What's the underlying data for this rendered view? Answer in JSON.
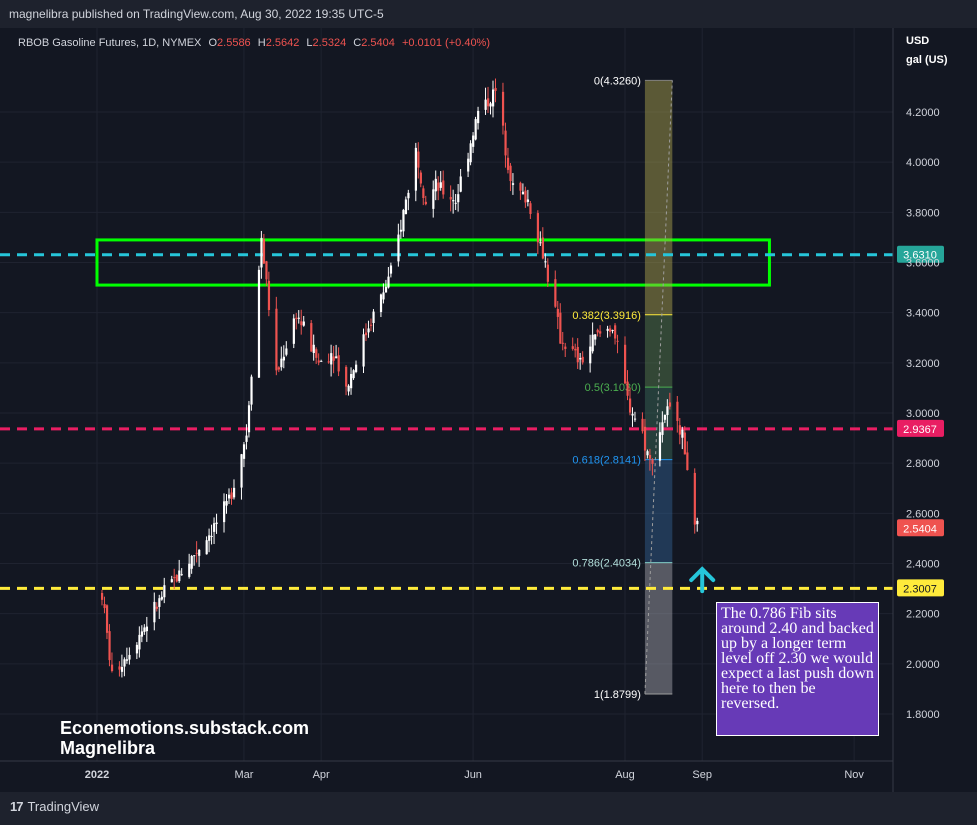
{
  "header": {
    "publish_text": "magnelibra published on TradingView.com, Aug 30, 2022 19:35 UTC-5"
  },
  "legend": {
    "symbol": "RBOB Gasoline Futures, 1D, NYMEX",
    "o_label": "O",
    "o_value": "2.5586",
    "h_label": "H",
    "h_value": "2.5642",
    "l_label": "L",
    "l_value": "2.5324",
    "c_label": "C",
    "c_value": "2.5404",
    "change": "+0.0101 (+0.40%)"
  },
  "axis": {
    "unit_line1": "USD",
    "unit_line2": "gal (US)"
  },
  "footer": {
    "brand": "TradingView"
  },
  "watermark": {
    "line1": "Econemotions.substack.com",
    "line2": "Magnelibra"
  },
  "annotation": {
    "text": "The 0.786 Fib sits around 2.40 and backed up by a longer term level off 2.30 we would expect a last push down here to then be reversed."
  },
  "colors": {
    "up": "#ffffff",
    "down": "#ef5350",
    "bg": "#131722",
    "zone": "#00ff00",
    "cyan_line": "#26c6da",
    "pink_line": "#e91e63",
    "yellow_line": "#ffeb3b",
    "arrow": "#26c6da",
    "note_bg": "#673ab7"
  },
  "chart_data": {
    "type": "candlestick",
    "ylim": [
      1.72,
      4.42
    ],
    "y_ticks": [
      "4.2000",
      "4.0000",
      "3.8000",
      "3.6000",
      "3.4000",
      "3.2000",
      "3.0000",
      "2.8000",
      "2.6000",
      "2.4000",
      "2.2000",
      "2.0000",
      "1.8000"
    ],
    "x_ticks": [
      "2022",
      "Mar",
      "Apr",
      "Jun",
      "Aug",
      "Sep",
      "Nov"
    ],
    "anchors": [
      {
        "date": "2022-01-03",
        "price": 2.28
      },
      {
        "date": "2022-01-07",
        "price": 1.95
      },
      {
        "date": "2022-01-20",
        "price": 2.15
      },
      {
        "date": "2022-01-28",
        "price": 2.28
      },
      {
        "date": "2022-02-10",
        "price": 2.45
      },
      {
        "date": "2022-02-22",
        "price": 2.62
      },
      {
        "date": "2022-03-02",
        "price": 2.92
      },
      {
        "date": "2022-03-08",
        "price": 3.7
      },
      {
        "date": "2022-03-14",
        "price": 3.15
      },
      {
        "date": "2022-03-22",
        "price": 3.4
      },
      {
        "date": "2022-03-31",
        "price": 3.2
      },
      {
        "date": "2022-04-06",
        "price": 3.25
      },
      {
        "date": "2022-04-11",
        "price": 3.1
      },
      {
        "date": "2022-04-20",
        "price": 3.35
      },
      {
        "date": "2022-04-29",
        "price": 3.55
      },
      {
        "date": "2022-05-04",
        "price": 3.8
      },
      {
        "date": "2022-05-09",
        "price": 4.05
      },
      {
        "date": "2022-05-13",
        "price": 3.85
      },
      {
        "date": "2022-05-17",
        "price": 3.9
      },
      {
        "date": "2022-05-25",
        "price": 3.85
      },
      {
        "date": "2022-06-03",
        "price": 4.2
      },
      {
        "date": "2022-06-10",
        "price": 4.28
      },
      {
        "date": "2022-06-17",
        "price": 3.9
      },
      {
        "date": "2022-06-23",
        "price": 3.85
      },
      {
        "date": "2022-06-30",
        "price": 3.6
      },
      {
        "date": "2022-07-06",
        "price": 3.3
      },
      {
        "date": "2022-07-14",
        "price": 3.2
      },
      {
        "date": "2022-07-20",
        "price": 3.3
      },
      {
        "date": "2022-07-27",
        "price": 3.35
      },
      {
        "date": "2022-08-02",
        "price": 3.05
      },
      {
        "date": "2022-08-08",
        "price": 2.92
      },
      {
        "date": "2022-08-11",
        "price": 2.8
      },
      {
        "date": "2022-08-17",
        "price": 3.0
      },
      {
        "date": "2022-08-22",
        "price": 3.0
      },
      {
        "date": "2022-08-26",
        "price": 2.8
      },
      {
        "date": "2022-08-29",
        "price": 2.52
      },
      {
        "date": "2022-08-30",
        "price": 2.5404
      }
    ],
    "horizontal_lines": [
      {
        "price": 3.631,
        "label": "3.6310"
      },
      {
        "price": 2.9367,
        "label": "2.9367"
      },
      {
        "price": 2.3007,
        "label": "2.3007"
      }
    ],
    "last_price_label": "2.5404",
    "zone": {
      "from_date": "2022-01-01",
      "to_date": "2022-09-28",
      "price_low": 3.51,
      "price_high": 3.69
    },
    "fibonacci": {
      "start_date": "2022-08-09",
      "end_date": "2022-08-20",
      "levels": [
        {
          "ratio": "0",
          "price": 4.326,
          "label": "0(4.3260)"
        },
        {
          "ratio": "0.382",
          "price": 3.3916,
          "label": "0.382(3.3916)"
        },
        {
          "ratio": "0.5",
          "price": 3.103,
          "label": "0.5(3.1030)"
        },
        {
          "ratio": "0.618",
          "price": 2.8141,
          "label": "0.618(2.8141)"
        },
        {
          "ratio": "0.786",
          "price": 2.4034,
          "label": "0.786(2.4034)"
        },
        {
          "ratio": "1",
          "price": 1.8799,
          "label": "1(1.8799)"
        }
      ]
    },
    "arrow": {
      "date": "2022-09-01",
      "price": 2.29,
      "direction": "up"
    }
  }
}
